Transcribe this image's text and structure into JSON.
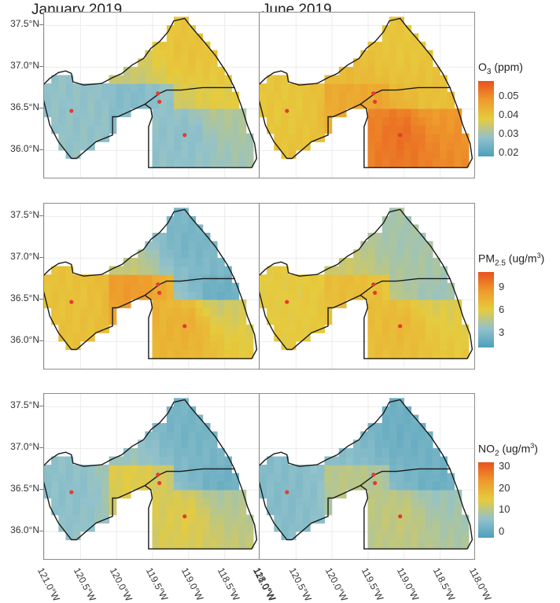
{
  "columns": [
    "January 2019",
    "June 2019"
  ],
  "y_labels": [
    "37.5°N",
    "37.0°N",
    "36.5°N",
    "36.0°N"
  ],
  "x_labels": [
    "121.0°W",
    "120.5°W",
    "120.0°W",
    "119.5°W",
    "119.0°W",
    "118.5°W",
    "118.0°W"
  ],
  "colors": [
    "#4d9fbc",
    "#92c2cb",
    "#e6cb3d",
    "#ee9a2c",
    "#e8521e"
  ],
  "chart_data": [
    {
      "type": "heatmap",
      "pollutant": "O3",
      "legend_title_main": "O",
      "legend_title_sub": "3",
      "legend_title_unit": " (ppm)",
      "legend_ticks": [
        "0.05",
        "0.04",
        "0.03",
        "0.02"
      ],
      "range": [
        0.018,
        0.058
      ],
      "panels": [
        {
          "column": "January 2019",
          "values": {
            "west": 0.028,
            "middle": 0.026,
            "south": 0.027,
            "north": 0.04,
            "east": 0.038
          }
        },
        {
          "column": "June 2019",
          "values": {
            "west": 0.039,
            "middle": 0.045,
            "south": 0.054,
            "north": 0.039,
            "east": 0.04
          }
        }
      ]
    },
    {
      "type": "heatmap",
      "pollutant": "PM2.5",
      "legend_title_main": "PM",
      "legend_title_sub": "2.5",
      "legend_title_unit": " (ug/m3)",
      "legend_ticks": [
        "9",
        "6",
        "3"
      ],
      "range": [
        1,
        11
      ],
      "panels": [
        {
          "column": "January 2019",
          "values": {
            "west": 6.5,
            "middle": 8.5,
            "south": 7.5,
            "north": 2.5,
            "east": 2.0
          }
        },
        {
          "column": "June 2019",
          "values": {
            "west": 6.0,
            "middle": 6.8,
            "south": 7.0,
            "north": 4.0,
            "east": 3.8
          }
        }
      ]
    },
    {
      "type": "heatmap",
      "pollutant": "NO2",
      "legend_title_main": "NO",
      "legend_title_sub": "2",
      "legend_title_unit": " (ug/m3)",
      "legend_ticks": [
        "30",
        "20",
        "10",
        "0"
      ],
      "range": [
        -3,
        32
      ],
      "panels": [
        {
          "column": "January 2019",
          "values": {
            "west": 5,
            "middle": 14,
            "south": 14,
            "north": 2,
            "east": 1
          }
        },
        {
          "column": "June 2019",
          "values": {
            "west": 4,
            "middle": 10,
            "south": 11,
            "north": 1,
            "east": 1
          }
        }
      ]
    }
  ]
}
